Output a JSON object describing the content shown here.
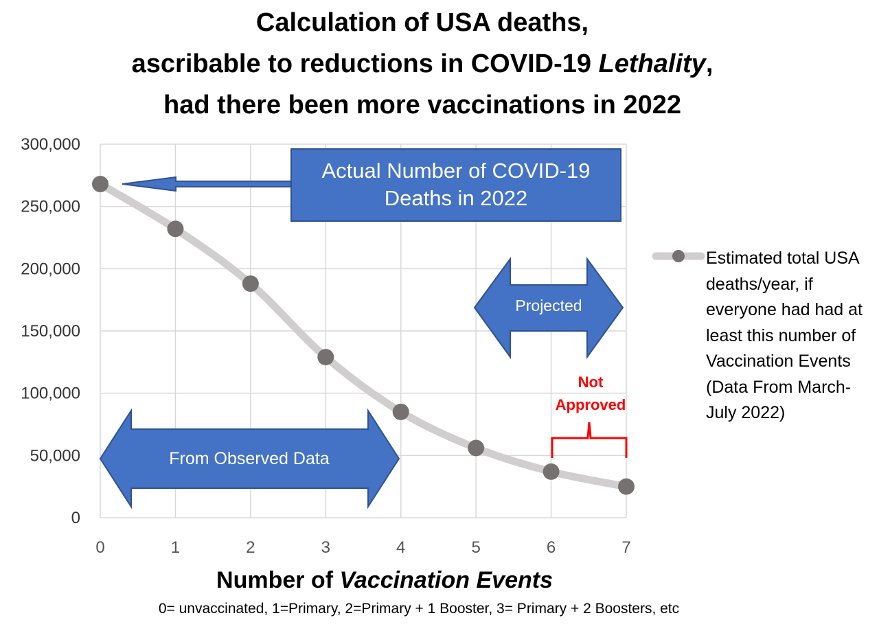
{
  "title": {
    "line1": "Calculation of USA deaths,",
    "line2_pre": "ascribable to reductions in COVID-19 ",
    "line2_em": "Lethality",
    "line2_post": ",",
    "line3": "had there been more vaccinations in 2022"
  },
  "annotations": {
    "actual_box": "Actual Number of COVID-19 Deaths in 2022",
    "projected": "Projected",
    "observed": "From Observed Data",
    "not_approved_1": "Not",
    "not_approved_2": "Approved"
  },
  "xlabel": {
    "pre": "Number of ",
    "em": "Vaccination Events"
  },
  "xnote": "0= unvaccinated, 1=Primary, 2=Primary + 1 Booster, 3= Primary + 2 Boosters, etc",
  "legend": "Estimated total USA deaths/year, if everyone had had at least this number of Vaccination Events (Data From March-July 2022)",
  "colors": {
    "series_line": "#d0cece",
    "marker": "#767171",
    "arrow_fill": "#4472c4",
    "arrow_stroke": "#2f528f",
    "not_approved": "#ff0000"
  },
  "chart_data": {
    "type": "line",
    "x": [
      0,
      1,
      2,
      3,
      4,
      5,
      6,
      7
    ],
    "series": [
      {
        "name": "Estimated total USA deaths/year, if everyone had had at least this number of Vaccination Events (Data From March-July 2022)",
        "values": [
          268000,
          232000,
          188000,
          129000,
          85000,
          56000,
          37000,
          25000
        ]
      }
    ],
    "xlim": [
      0,
      7
    ],
    "ylim": [
      0,
      300000
    ],
    "yticks": [
      "0",
      "50,000",
      "100,000",
      "150,000",
      "200,000",
      "250,000",
      "300,000"
    ],
    "xticks": [
      "0",
      "1",
      "2",
      "3",
      "4",
      "5",
      "6",
      "7"
    ],
    "grid": true,
    "legend_position": "right"
  }
}
